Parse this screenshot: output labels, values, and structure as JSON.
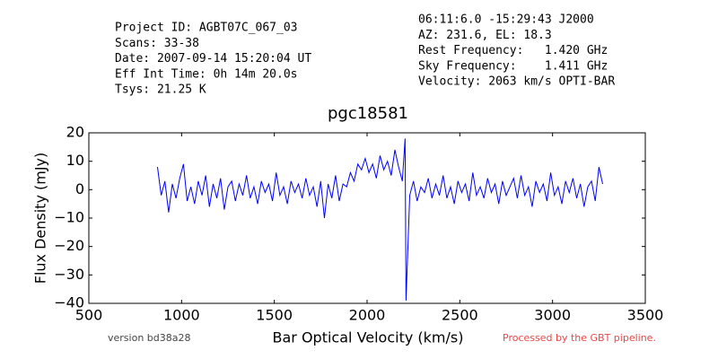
{
  "chart_data": {
    "type": "line",
    "title": "pgc18581",
    "xlabel": "Bar Optical Velocity (km/s)",
    "ylabel": "Flux Density (mJy)",
    "header_left": [
      "Project ID: AGBT07C_067_03",
      "Scans: 33-38",
      "Date: 2007-09-14 15:20:04 UT",
      "Eff Int Time: 0h 14m 20.0s",
      "Tsys: 21.25 K"
    ],
    "header_right": [
      "06:11:6.0 -15:29:43 J2000",
      "AZ: 231.6, EL: 18.3",
      "Rest Frequency:   1.420 GHz",
      "Sky Frequency:    1.411 GHz",
      "Velocity: 2063 km/s OPTI-BAR"
    ],
    "footer_left": "version bd38a28",
    "footer_right": "Processed by the GBT pipeline.",
    "footer_right_color": "#e84848",
    "xlim": [
      500,
      3500
    ],
    "xticks": [
      500,
      1000,
      1500,
      2000,
      2500,
      3000,
      3500
    ],
    "ylim": [
      -40,
      20
    ],
    "yticks": [
      {
        "value": -40,
        "label": "−40"
      },
      {
        "value": -30,
        "label": "−30"
      },
      {
        "value": -20,
        "label": "−20"
      },
      {
        "value": -10,
        "label": "−10"
      },
      0,
      10,
      20
    ],
    "x": [
      870,
      890,
      910,
      930,
      950,
      970,
      990,
      1010,
      1030,
      1050,
      1070,
      1090,
      1110,
      1130,
      1150,
      1170,
      1190,
      1210,
      1230,
      1250,
      1270,
      1290,
      1310,
      1330,
      1350,
      1370,
      1390,
      1410,
      1430,
      1450,
      1470,
      1490,
      1510,
      1530,
      1550,
      1570,
      1590,
      1610,
      1630,
      1650,
      1670,
      1690,
      1710,
      1730,
      1750,
      1770,
      1790,
      1810,
      1830,
      1850,
      1870,
      1890,
      1910,
      1930,
      1950,
      1970,
      1990,
      2010,
      2030,
      2050,
      2070,
      2090,
      2110,
      2130,
      2150,
      2170,
      2190,
      2205,
      2210,
      2230,
      2250,
      2270,
      2290,
      2310,
      2330,
      2350,
      2370,
      2390,
      2410,
      2430,
      2450,
      2470,
      2490,
      2510,
      2530,
      2550,
      2570,
      2590,
      2610,
      2630,
      2650,
      2670,
      2690,
      2710,
      2730,
      2750,
      2770,
      2790,
      2810,
      2830,
      2850,
      2870,
      2890,
      2910,
      2930,
      2950,
      2970,
      2990,
      3010,
      3030,
      3050,
      3070,
      3090,
      3110,
      3130,
      3150,
      3170,
      3190,
      3210,
      3230,
      3250,
      3270
    ],
    "series": [
      {
        "color": "#0000ff",
        "values": [
          8,
          -2,
          3,
          -8,
          2,
          -3,
          4,
          9,
          -4,
          1,
          -5,
          3,
          -2,
          5,
          -6,
          2,
          -3,
          4,
          -7,
          1,
          3,
          -4,
          2,
          -2,
          5,
          -3,
          1,
          -5,
          3,
          -1,
          2,
          -4,
          6,
          -2,
          1,
          -5,
          3,
          -1,
          2,
          -3,
          4,
          -2,
          1,
          -6,
          3,
          -10,
          2,
          -3,
          5,
          -4,
          2,
          1,
          6,
          3,
          9,
          7,
          11,
          6,
          9,
          4,
          12,
          7,
          10,
          5,
          14,
          8,
          3,
          18,
          -39,
          -2,
          3,
          -4,
          1,
          -1,
          4,
          -3,
          2,
          -2,
          5,
          -3,
          1,
          -5,
          3,
          -1,
          2,
          -4,
          6,
          -2,
          1,
          -3,
          4,
          -1,
          2,
          -5,
          3,
          -2,
          1,
          4,
          -3,
          5,
          -2,
          1,
          -6,
          3,
          -1,
          2,
          -4,
          6,
          -2,
          1,
          -5,
          3,
          -1,
          4,
          -3,
          2,
          -6,
          1,
          3,
          -4,
          8,
          2
        ]
      }
    ]
  }
}
